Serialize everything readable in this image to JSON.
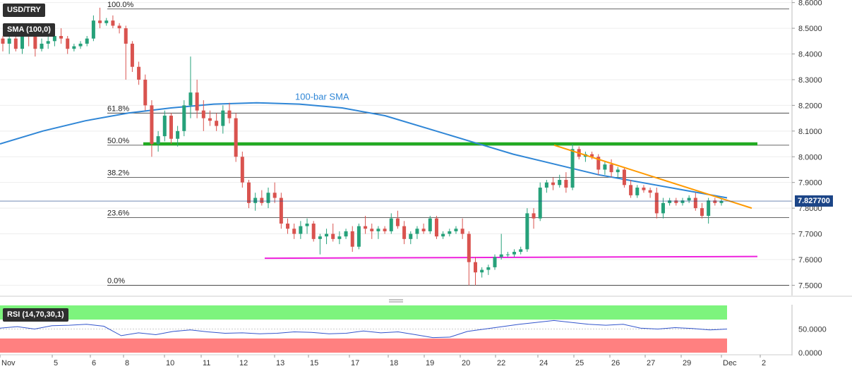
{
  "instrument": "USD/TRY",
  "indicator_label": "SMA (100,0)",
  "rsi_label": "RSI (14,70,30,1)",
  "current_price": "7.827700",
  "sma_annotation": "100-bar SMA",
  "colors": {
    "bull": "#26a17a",
    "bear": "#d9534f",
    "sma": "#2f86d6",
    "support": "#ee22dd",
    "resistance": "#22aa22",
    "trendline": "#ff9900",
    "rsi_line": "#3355cc",
    "rsi_overbought": "#7df47d",
    "rsi_oversold": "#ff8080"
  },
  "chart_data": {
    "type": "candlestick",
    "price_axis": {
      "ylim": [
        7.46,
        8.61
      ],
      "ticks": [
        7.5,
        7.6,
        7.7,
        7.8,
        7.9,
        8.0,
        8.1,
        8.2,
        8.3,
        8.4,
        8.5,
        8.6
      ],
      "tick_labels": [
        "7.5000",
        "7.6000",
        "7.7000",
        "7.8000",
        "7.9000",
        "8.0000",
        "8.1000",
        "8.2000",
        "8.3000",
        "8.4000",
        "8.5000",
        "8.6000"
      ]
    },
    "rsi_axis": {
      "ylim": [
        0,
        100
      ],
      "ticks": [
        0,
        50
      ],
      "tick_labels": [
        "0.0000",
        "50.0000"
      ]
    },
    "date_labels": [
      "Nov",
      "5",
      "6",
      "8",
      "10",
      "11",
      "12",
      "13",
      "15",
      "17",
      "18",
      "19",
      "20",
      "22",
      "24",
      "25",
      "26",
      "27",
      "29",
      "Dec",
      "2"
    ],
    "fibonacci": [
      {
        "label": "100.0%",
        "value": 8.575
      },
      {
        "label": "61.8%",
        "value": 8.17
      },
      {
        "label": "50.0%",
        "value": 8.045
      },
      {
        "label": "38.2%",
        "value": 7.92
      },
      {
        "label": "23.6%",
        "value": 7.763
      },
      {
        "label": "0.0%",
        "value": 7.5
      }
    ],
    "resistance_level": 8.05,
    "support_start": 7.605,
    "support_end": 7.612,
    "trendline_start": 8.045,
    "trendline_end": 7.8,
    "last_price": 7.8277,
    "candles": [
      [
        8.46,
        8.47,
        8.41,
        8.44
      ],
      [
        8.44,
        8.49,
        8.4,
        8.46
      ],
      [
        8.46,
        8.48,
        8.41,
        8.42
      ],
      [
        8.42,
        8.52,
        8.4,
        8.5
      ],
      [
        8.5,
        8.51,
        8.43,
        8.47
      ],
      [
        8.47,
        8.49,
        8.39,
        8.42
      ],
      [
        8.42,
        8.46,
        8.41,
        8.44
      ],
      [
        8.44,
        8.47,
        8.42,
        8.45
      ],
      [
        8.45,
        8.48,
        8.43,
        8.47
      ],
      [
        8.47,
        8.5,
        8.44,
        8.46
      ],
      [
        8.46,
        8.47,
        8.4,
        8.42
      ],
      [
        8.42,
        8.44,
        8.41,
        8.43
      ],
      [
        8.43,
        8.45,
        8.42,
        8.44
      ],
      [
        8.44,
        8.47,
        8.43,
        8.46
      ],
      [
        8.46,
        8.55,
        8.45,
        8.53
      ],
      [
        8.53,
        8.58,
        8.5,
        8.52
      ],
      [
        8.52,
        8.54,
        8.51,
        8.53
      ],
      [
        8.53,
        8.55,
        8.5,
        8.51
      ],
      [
        8.51,
        8.52,
        8.48,
        8.5
      ],
      [
        8.5,
        8.51,
        8.3,
        8.44
      ],
      [
        8.44,
        8.45,
        8.33,
        8.35
      ],
      [
        8.35,
        8.37,
        8.28,
        8.3
      ],
      [
        8.3,
        8.32,
        8.18,
        8.2
      ],
      [
        8.2,
        8.22,
        8.0,
        8.05
      ],
      [
        8.05,
        8.1,
        8.02,
        8.08
      ],
      [
        8.08,
        8.18,
        8.06,
        8.16
      ],
      [
        8.16,
        8.17,
        8.05,
        8.07
      ],
      [
        8.07,
        8.12,
        8.04,
        8.1
      ],
      [
        8.1,
        8.22,
        8.08,
        8.2
      ],
      [
        8.2,
        8.39,
        8.15,
        8.25
      ],
      [
        8.25,
        8.3,
        8.15,
        8.18
      ],
      [
        8.18,
        8.22,
        8.1,
        8.15
      ],
      [
        8.15,
        8.18,
        8.12,
        8.14
      ],
      [
        8.14,
        8.17,
        8.1,
        8.12
      ],
      [
        8.12,
        8.2,
        8.09,
        8.18
      ],
      [
        8.18,
        8.21,
        8.13,
        8.15
      ],
      [
        8.15,
        8.17,
        7.98,
        8.0
      ],
      [
        8.0,
        8.02,
        7.88,
        7.9
      ],
      [
        7.9,
        7.91,
        7.8,
        7.82
      ],
      [
        7.82,
        7.86,
        7.79,
        7.84
      ],
      [
        7.84,
        7.87,
        7.81,
        7.82
      ],
      [
        7.82,
        7.88,
        7.8,
        7.86
      ],
      [
        7.86,
        7.9,
        7.82,
        7.84
      ],
      [
        7.84,
        7.86,
        7.72,
        7.74
      ],
      [
        7.74,
        7.76,
        7.7,
        7.72
      ],
      [
        7.72,
        7.74,
        7.68,
        7.7
      ],
      [
        7.7,
        7.75,
        7.68,
        7.73
      ],
      [
        7.73,
        7.76,
        7.7,
        7.74
      ],
      [
        7.74,
        7.75,
        7.67,
        7.68
      ],
      [
        7.68,
        7.7,
        7.62,
        7.69
      ],
      [
        7.69,
        7.72,
        7.66,
        7.7
      ],
      [
        7.7,
        7.74,
        7.67,
        7.68
      ],
      [
        7.68,
        7.71,
        7.66,
        7.69
      ],
      [
        7.69,
        7.72,
        7.68,
        7.71
      ],
      [
        7.71,
        7.73,
        7.63,
        7.65
      ],
      [
        7.65,
        7.74,
        7.64,
        7.73
      ],
      [
        7.73,
        7.77,
        7.7,
        7.72
      ],
      [
        7.72,
        7.74,
        7.68,
        7.71
      ],
      [
        7.71,
        7.73,
        7.68,
        7.72
      ],
      [
        7.72,
        7.73,
        7.7,
        7.71
      ],
      [
        7.71,
        7.78,
        7.7,
        7.76
      ],
      [
        7.76,
        7.79,
        7.72,
        7.73
      ],
      [
        7.73,
        7.75,
        7.66,
        7.68
      ],
      [
        7.68,
        7.71,
        7.66,
        7.7
      ],
      [
        7.7,
        7.73,
        7.68,
        7.72
      ],
      [
        7.72,
        7.74,
        7.7,
        7.71
      ],
      [
        7.71,
        7.77,
        7.7,
        7.76
      ],
      [
        7.76,
        7.77,
        7.68,
        7.69
      ],
      [
        7.69,
        7.71,
        7.68,
        7.7
      ],
      [
        7.7,
        7.72,
        7.69,
        7.71
      ],
      [
        7.71,
        7.73,
        7.7,
        7.72
      ],
      [
        7.72,
        7.76,
        7.68,
        7.7
      ],
      [
        7.7,
        7.71,
        7.5,
        7.59
      ],
      [
        7.59,
        7.61,
        7.5,
        7.55
      ],
      [
        7.55,
        7.57,
        7.53,
        7.56
      ],
      [
        7.56,
        7.58,
        7.54,
        7.57
      ],
      [
        7.57,
        7.62,
        7.56,
        7.61
      ],
      [
        7.61,
        7.7,
        7.6,
        7.62
      ],
      [
        7.62,
        7.63,
        7.61,
        7.62
      ],
      [
        7.62,
        7.64,
        7.61,
        7.63
      ],
      [
        7.63,
        7.65,
        7.62,
        7.64
      ],
      [
        7.64,
        7.8,
        7.63,
        7.78
      ],
      [
        7.78,
        7.8,
        7.72,
        7.76
      ],
      [
        7.76,
        7.9,
        7.75,
        7.88
      ],
      [
        7.88,
        7.91,
        7.86,
        7.9
      ],
      [
        7.9,
        7.92,
        7.87,
        7.89
      ],
      [
        7.89,
        7.93,
        7.88,
        7.91
      ],
      [
        7.91,
        7.94,
        7.86,
        7.88
      ],
      [
        7.88,
        8.05,
        7.87,
        8.03
      ],
      [
        8.03,
        8.04,
        7.99,
        8.0
      ],
      [
        8.0,
        8.02,
        7.98,
        8.01
      ],
      [
        8.01,
        8.02,
        7.99,
        8.0
      ],
      [
        8.0,
        8.01,
        7.93,
        7.95
      ],
      [
        7.95,
        7.98,
        7.93,
        7.97
      ],
      [
        7.97,
        7.99,
        7.92,
        7.94
      ],
      [
        7.94,
        7.96,
        7.92,
        7.95
      ],
      [
        7.95,
        7.96,
        7.88,
        7.89
      ],
      [
        7.89,
        7.91,
        7.84,
        7.85
      ],
      [
        7.85,
        7.89,
        7.84,
        7.88
      ],
      [
        7.88,
        7.89,
        7.86,
        7.87
      ],
      [
        7.87,
        7.88,
        7.84,
        7.86
      ],
      [
        7.86,
        7.88,
        7.76,
        7.78
      ],
      [
        7.78,
        7.84,
        7.76,
        7.82
      ],
      [
        7.82,
        7.84,
        7.81,
        7.83
      ],
      [
        7.83,
        7.84,
        7.81,
        7.82
      ],
      [
        7.82,
        7.84,
        7.81,
        7.83
      ],
      [
        7.83,
        7.85,
        7.82,
        7.84
      ],
      [
        7.84,
        7.86,
        7.79,
        7.8
      ],
      [
        7.8,
        7.82,
        7.76,
        7.77
      ],
      [
        7.77,
        7.84,
        7.74,
        7.83
      ],
      [
        7.83,
        7.84,
        7.81,
        7.82
      ],
      [
        7.82,
        7.84,
        7.81,
        7.828
      ]
    ],
    "sma": [
      8.05,
      8.1,
      8.14,
      8.17,
      8.19,
      8.205,
      8.21,
      8.205,
      8.19,
      8.16,
      8.11,
      8.06,
      8.01,
      7.97,
      7.93,
      7.9,
      7.87,
      7.84
    ],
    "rsi": [
      52,
      55,
      50,
      57,
      58,
      60,
      56,
      36,
      42,
      38,
      45,
      48,
      44,
      41,
      42,
      40,
      41,
      44,
      43,
      40,
      41,
      46,
      42,
      44,
      38,
      32,
      33,
      45,
      50,
      55,
      60,
      64,
      68,
      64,
      60,
      58,
      60,
      52,
      50,
      53,
      51,
      48,
      50
    ]
  }
}
